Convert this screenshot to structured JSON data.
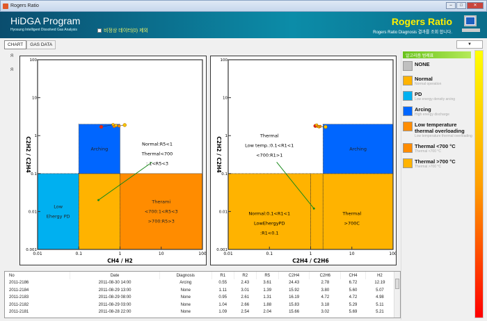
{
  "window": {
    "title": "Rogers Ratio"
  },
  "header": {
    "title": "HiDGA Program",
    "subtitle": "Hyosung Intelligent Dissolved Gas Analysis",
    "checkbox_label": "비정상 데이터(0) 제외",
    "page_title": "Rogers Ratio",
    "page_subtitle": "Rogers Ratio Diagnosis 결과를 조회 합니다."
  },
  "tabs": [
    {
      "label": "CHART"
    },
    {
      "label": "GAS DATA"
    }
  ],
  "dropdown": {
    "label": "▼"
  },
  "legend": {
    "header": "알고리즘 범례표",
    "items": [
      {
        "label": "NONE",
        "desc": "",
        "color": "#c0c0c0"
      },
      {
        "label": "Normal",
        "desc": "Normal operation",
        "color": "#ffb300"
      },
      {
        "label": "PD",
        "desc": "Low energy density arcing",
        "color": "#00b0f0"
      },
      {
        "label": "Arcing",
        "desc": "High energy discharge",
        "color": "#0066ff"
      },
      {
        "label": "Low temperature thermal overloading",
        "desc": "Low temperature thermal overloading",
        "color": "#ff8c00"
      },
      {
        "label": "Thermal <700 °C",
        "desc": "Thermal <700 °C",
        "color": "#ff8c00"
      },
      {
        "label": "Thermal >700 °C",
        "desc": "Thermal >700 °C",
        "color": "#ffb300"
      }
    ]
  },
  "chart_data": [
    {
      "type": "scatter",
      "xlabel": "CH4 / H2",
      "ylabel": "C2H2 / C2H4",
      "xscale": "log",
      "yscale": "log",
      "xlim": [
        0.01,
        100
      ],
      "ylim": [
        0.001,
        100
      ],
      "xticks": [
        "0.01",
        "0.1",
        "1",
        "10",
        "100"
      ],
      "yticks": [
        "0.001",
        "0.01",
        "0.1",
        "1",
        "10",
        "100"
      ],
      "regions": [
        {
          "x": [
            0.01,
            0.1
          ],
          "y": [
            0.001,
            0.1
          ],
          "color": "#00b0f0",
          "labels": [
            "Low",
            "Ehergy PD"
          ]
        },
        {
          "x": [
            0.1,
            1
          ],
          "y": [
            0.001,
            0.1
          ],
          "color": "#ffb300",
          "labels": []
        },
        {
          "x": [
            1,
            100
          ],
          "y": [
            0.001,
            0.1
          ],
          "color": "#ff8c00",
          "labels": [
            "Therami",
            "<700:1<R5<3",
            ">700:R5>3"
          ]
        },
        {
          "x": [
            0.1,
            1
          ],
          "y": [
            0.1,
            2
          ],
          "color": "#0066ff",
          "labels": [
            "Arching"
          ]
        }
      ],
      "annotation": {
        "lines": [
          "Normal:R5<1",
          "Thermal<700",
          ": 1<R5<3"
        ],
        "at": [
          8,
          0.3
        ],
        "arrow_from": [
          6,
          0.2
        ],
        "arrow_to": [
          0.3,
          0.02
        ]
      },
      "points": [
        [
          0.35,
          1.7
        ],
        [
          0.68,
          1.95
        ],
        [
          0.72,
          1.75
        ],
        [
          0.8,
          1.85
        ],
        [
          0.95,
          1.8
        ],
        [
          1.3,
          1.9
        ]
      ]
    },
    {
      "type": "scatter",
      "xlabel": "C2H4 / C2H6",
      "ylabel": "C2H2 / C2H4",
      "xscale": "log",
      "yscale": "log",
      "xlim": [
        0.01,
        100
      ],
      "ylim": [
        0.001,
        100
      ],
      "xticks": [
        "0.01",
        "0.1",
        "1",
        "10",
        "100"
      ],
      "yticks": [
        "0.001",
        "0.01",
        "0.1",
        "1",
        "10",
        "100"
      ],
      "regions": [
        {
          "x": [
            0.01,
            100
          ],
          "y": [
            0.001,
            0.1
          ],
          "color": "#ffb300",
          "labels": []
        },
        {
          "x": [
            2,
            100
          ],
          "y": [
            0.1,
            2
          ],
          "color": "#0066ff",
          "labels": [
            "Arching"
          ]
        }
      ],
      "region_texts": [
        {
          "lines": [
            "Normal:0.1<R1<1",
            "LowEhergyPD",
            ":R1<0.1"
          ],
          "at": [
            0.1,
            0.008
          ]
        },
        {
          "lines": [
            "Thermal",
            ">700C"
          ],
          "at": [
            10,
            0.008
          ]
        }
      ],
      "vlines": [
        1,
        2
      ],
      "annotation": {
        "lines": [
          "Thermal",
          "Low temp.:0.1<R1<1",
          "<700:R1>1"
        ],
        "at": [
          0.1,
          0.5
        ],
        "arrow_from": [
          0.15,
          0.2
        ],
        "arrow_to": [
          1.2,
          0.012
        ]
      },
      "points": [
        [
          1.3,
          1.8
        ],
        [
          1.4,
          1.9
        ],
        [
          1.5,
          1.75
        ],
        [
          1.6,
          1.7
        ],
        [
          1.7,
          1.75
        ],
        [
          2.3,
          1.7
        ]
      ]
    }
  ],
  "table": {
    "columns": [
      "No",
      "Date",
      "Diagnosis",
      "R1",
      "R2",
      "R5",
      "C2H4",
      "C2H6",
      "CH4",
      "H2"
    ],
    "rows": [
      [
        "2011-2186",
        "2011-08-30 14:00",
        "Arcing",
        "0.55",
        "2.43",
        "3.61",
        "24.43",
        "2.78",
        "6.72",
        "12.19"
      ],
      [
        "2011-2184",
        "2011-08-29 13:00",
        "None",
        "1.11",
        "3.01",
        "1.39",
        "15.92",
        "3.80",
        "5.60",
        "5.07"
      ],
      [
        "2011-2183",
        "2011-08-29 08:00",
        "None",
        "0.95",
        "2.61",
        "1.31",
        "16.19",
        "4.72",
        "4.72",
        "4.98"
      ],
      [
        "2011-2182",
        "2011-08-29 03:00",
        "None",
        "1.04",
        "2.66",
        "1.88",
        "15.83",
        "3.18",
        "5.29",
        "5.11"
      ],
      [
        "2011-2181",
        "2011-08-28 22:00",
        "None",
        "1.09",
        "2.54",
        "2.04",
        "15.66",
        "3.02",
        "5.69",
        "5.21"
      ]
    ]
  }
}
